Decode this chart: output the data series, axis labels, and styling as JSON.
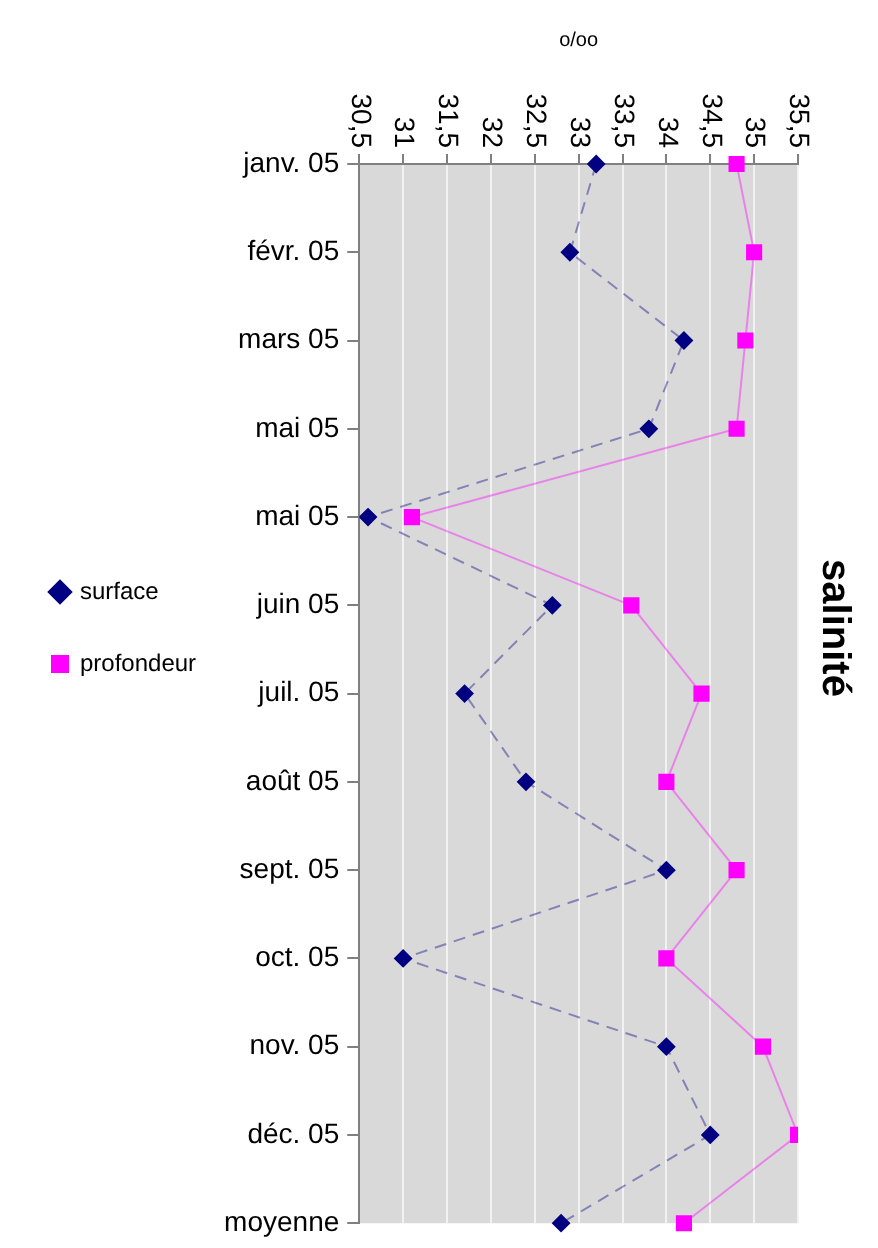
{
  "chart_data": {
    "type": "line",
    "orientation": "horizontal",
    "title": "salinité",
    "xlabel": "o/oo",
    "categories": [
      "janv. 05",
      "févr. 05",
      "mars 05",
      "mai 05",
      "mai 05",
      "juin 05",
      "juil. 05",
      "août 05",
      "sept. 05",
      "oct. 05",
      "nov. 05",
      "déc. 05",
      "moyenne"
    ],
    "series": [
      {
        "name": "surface",
        "color": "#000080",
        "marker": "diamond",
        "line_style": "dashed",
        "values": [
          33.2,
          32.9,
          34.2,
          33.8,
          30.6,
          32.7,
          31.7,
          32.4,
          34.0,
          31.0,
          34.0,
          34.5,
          32.8
        ]
      },
      {
        "name": "profondeur",
        "color": "#ff00ff",
        "marker": "square",
        "line_style": "solid",
        "values": [
          34.8,
          35.0,
          34.9,
          34.8,
          31.1,
          33.6,
          34.4,
          34.0,
          34.8,
          34.0,
          35.1,
          35.5,
          34.2
        ]
      }
    ],
    "xlim": [
      30.5,
      35.5
    ],
    "xticks": [
      {
        "value": 30.5,
        "label": "30,5"
      },
      31,
      {
        "value": 31.5,
        "label": "31,5"
      },
      32,
      {
        "value": 32.5,
        "label": "32,5"
      },
      33,
      {
        "value": 33.5,
        "label": "33,5"
      },
      34,
      {
        "value": 34.5,
        "label": "34,5"
      },
      35,
      {
        "value": 35.5,
        "label": "35,5"
      }
    ],
    "grid": "x",
    "legend": "left"
  }
}
